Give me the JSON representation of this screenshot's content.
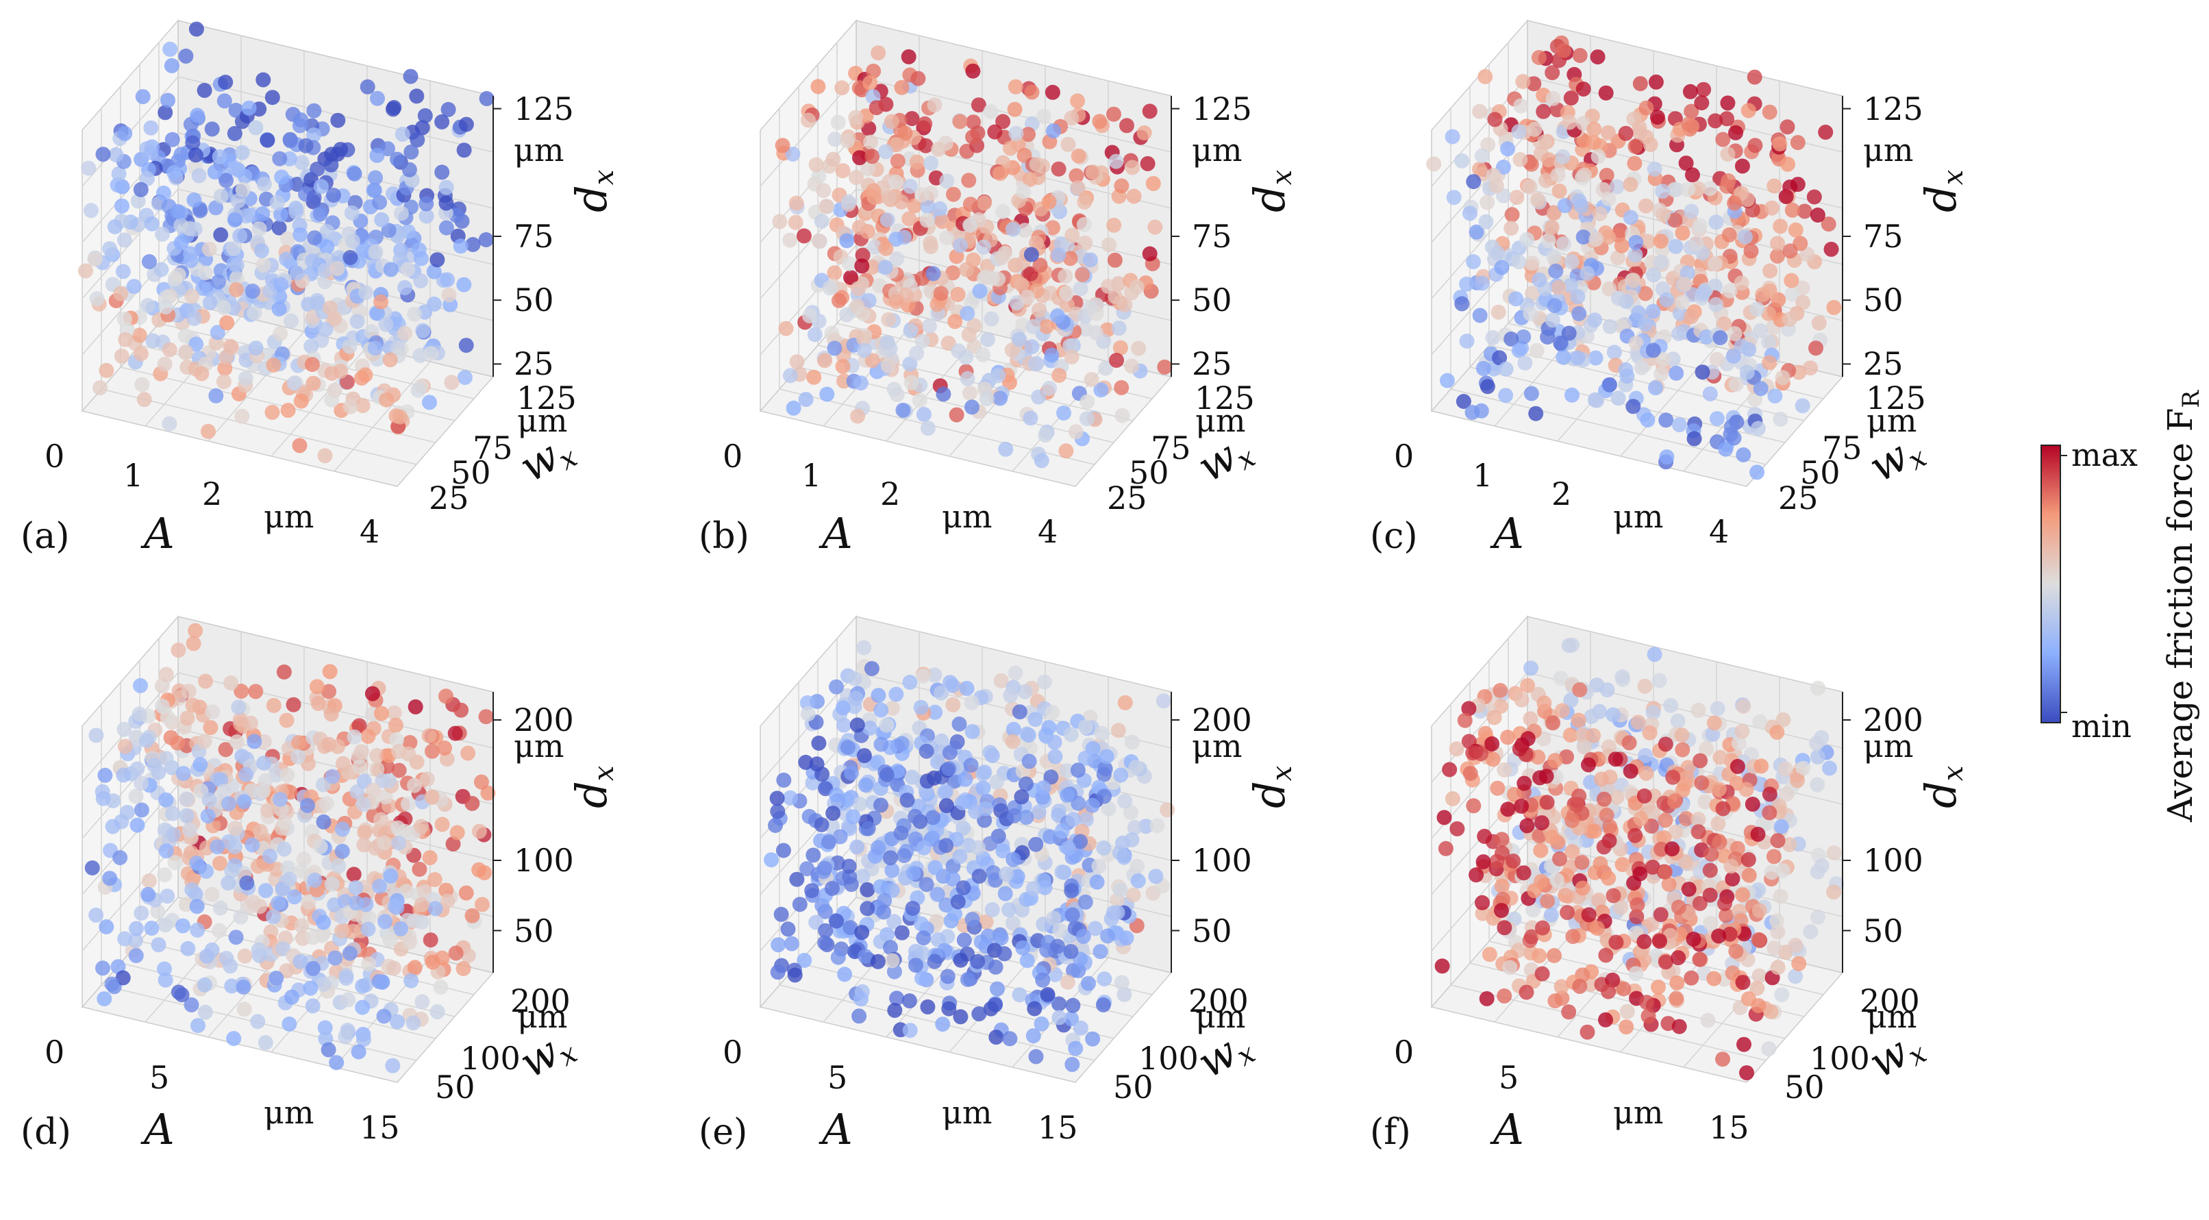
{
  "figure": {
    "colorbar": {
      "label": "Average friction force F",
      "label_subscript": "R",
      "max_label": "max",
      "min_label": "min",
      "colormap": "coolwarm",
      "colors": [
        "#3b4cc0",
        "#8db0fe",
        "#dddddd",
        "#f49a7b",
        "#b40426"
      ]
    },
    "panels": [
      {
        "label": "(a)"
      },
      {
        "label": "(b)"
      },
      {
        "label": "(c)"
      },
      {
        "label": "(d)"
      },
      {
        "label": "(e)"
      },
      {
        "label": "(f)"
      }
    ]
  },
  "chart_data": [
    {
      "type": "scatter",
      "panel": "(a)",
      "projection": "3d",
      "x_axis": {
        "label": "A",
        "unit": "μm",
        "ticks": [
          "0",
          "1",
          "2",
          "4"
        ],
        "range": [
          0,
          4
        ]
      },
      "y_axis": {
        "label": "w",
        "label_subscript": "x",
        "unit": "μm",
        "ticks": [
          "25",
          "50",
          "75",
          "125"
        ],
        "range": [
          20,
          130
        ]
      },
      "z_axis": {
        "label": "d",
        "label_subscript": "x",
        "unit": "μm",
        "ticks": [
          "25",
          "50",
          "75",
          "125"
        ],
        "range": [
          20,
          130
        ]
      },
      "color_scale": "Average friction force F_R (min to max)",
      "color_trend": {
        "intercept": 0.7,
        "along_A": 0.05,
        "along_w": -0.35,
        "along_d": -0.45,
        "spread": 0.14
      },
      "n_points": 620,
      "grid": true
    },
    {
      "type": "scatter",
      "panel": "(b)",
      "projection": "3d",
      "x_axis": {
        "label": "A",
        "unit": "μm",
        "ticks": [
          "0",
          "1",
          "2",
          "4"
        ],
        "range": [
          0,
          4
        ]
      },
      "y_axis": {
        "label": "w",
        "label_subscript": "x",
        "unit": "μm",
        "ticks": [
          "25",
          "50",
          "75",
          "125"
        ],
        "range": [
          20,
          130
        ]
      },
      "z_axis": {
        "label": "d",
        "label_subscript": "x",
        "unit": "μm",
        "ticks": [
          "25",
          "50",
          "75",
          "125"
        ],
        "range": [
          20,
          130
        ]
      },
      "color_scale": "Average friction force F_R (min to max)",
      "color_trend": {
        "intercept": 0.38,
        "along_A": -0.05,
        "along_w": 0.35,
        "along_d": 0.2,
        "spread": 0.16
      },
      "n_points": 640,
      "grid": true
    },
    {
      "type": "scatter",
      "panel": "(c)",
      "projection": "3d",
      "x_axis": {
        "label": "A",
        "unit": "μm",
        "ticks": [
          "0",
          "1",
          "2",
          "4"
        ],
        "range": [
          0,
          4
        ]
      },
      "y_axis": {
        "label": "w",
        "label_subscript": "x",
        "unit": "μm",
        "ticks": [
          "25",
          "50",
          "75",
          "125"
        ],
        "range": [
          20,
          130
        ]
      },
      "z_axis": {
        "label": "d",
        "label_subscript": "x",
        "unit": "μm",
        "ticks": [
          "25",
          "50",
          "75",
          "125"
        ],
        "range": [
          20,
          130
        ]
      },
      "color_scale": "Average friction force F_R (min to max)",
      "color_trend": {
        "intercept": 0.1,
        "along_A": 0.05,
        "along_w": 0.55,
        "along_d": 0.35,
        "spread": 0.14
      },
      "n_points": 640,
      "grid": true
    },
    {
      "type": "scatter",
      "panel": "(d)",
      "projection": "3d",
      "x_axis": {
        "label": "A",
        "unit": "μm",
        "ticks": [
          "0",
          "5",
          "15"
        ],
        "range": [
          0,
          15
        ]
      },
      "y_axis": {
        "label": "w",
        "label_subscript": "x",
        "unit": "μm",
        "ticks": [
          "50",
          "100",
          "200"
        ],
        "range": [
          30,
          220
        ]
      },
      "z_axis": {
        "label": "d",
        "label_subscript": "x",
        "unit": "μm",
        "ticks": [
          "50",
          "100",
          "200"
        ],
        "range": [
          20,
          220
        ]
      },
      "color_scale": "Average friction force F_R (min to max)",
      "color_trend": {
        "intercept": 0.2,
        "along_A": 0.05,
        "along_w": 0.5,
        "along_d": 0.1,
        "spread": 0.12
      },
      "n_points": 700,
      "grid": true
    },
    {
      "type": "scatter",
      "panel": "(e)",
      "projection": "3d",
      "x_axis": {
        "label": "A",
        "unit": "μm",
        "ticks": [
          "0",
          "5",
          "15"
        ],
        "range": [
          0,
          15
        ]
      },
      "y_axis": {
        "label": "w",
        "label_subscript": "x",
        "unit": "μm",
        "ticks": [
          "50",
          "100",
          "200"
        ],
        "range": [
          30,
          220
        ]
      },
      "z_axis": {
        "label": "d",
        "label_subscript": "x",
        "unit": "μm",
        "ticks": [
          "50",
          "100",
          "200"
        ],
        "range": [
          20,
          220
        ]
      },
      "color_scale": "Average friction force F_R (min to max)",
      "color_trend": {
        "intercept": 0.05,
        "along_A": 0.05,
        "along_w": 0.4,
        "along_d": 0.05,
        "spread": 0.12
      },
      "n_points": 760,
      "grid": true
    },
    {
      "type": "scatter",
      "panel": "(f)",
      "projection": "3d",
      "x_axis": {
        "label": "A",
        "unit": "μm",
        "ticks": [
          "0",
          "5",
          "15"
        ],
        "range": [
          0,
          15
        ]
      },
      "y_axis": {
        "label": "w",
        "label_subscript": "x",
        "unit": "μm",
        "ticks": [
          "50",
          "100",
          "200"
        ],
        "range": [
          30,
          220
        ]
      },
      "z_axis": {
        "label": "d",
        "label_subscript": "x",
        "unit": "μm",
        "ticks": [
          "50",
          "100",
          "200"
        ],
        "range": [
          20,
          220
        ]
      },
      "color_scale": "Average friction force F_R (min to max)",
      "color_trend": {
        "intercept": 0.9,
        "along_A": 0.05,
        "along_w": -0.6,
        "along_d": 0.05,
        "spread": 0.12
      },
      "n_points": 760,
      "grid": true
    }
  ]
}
